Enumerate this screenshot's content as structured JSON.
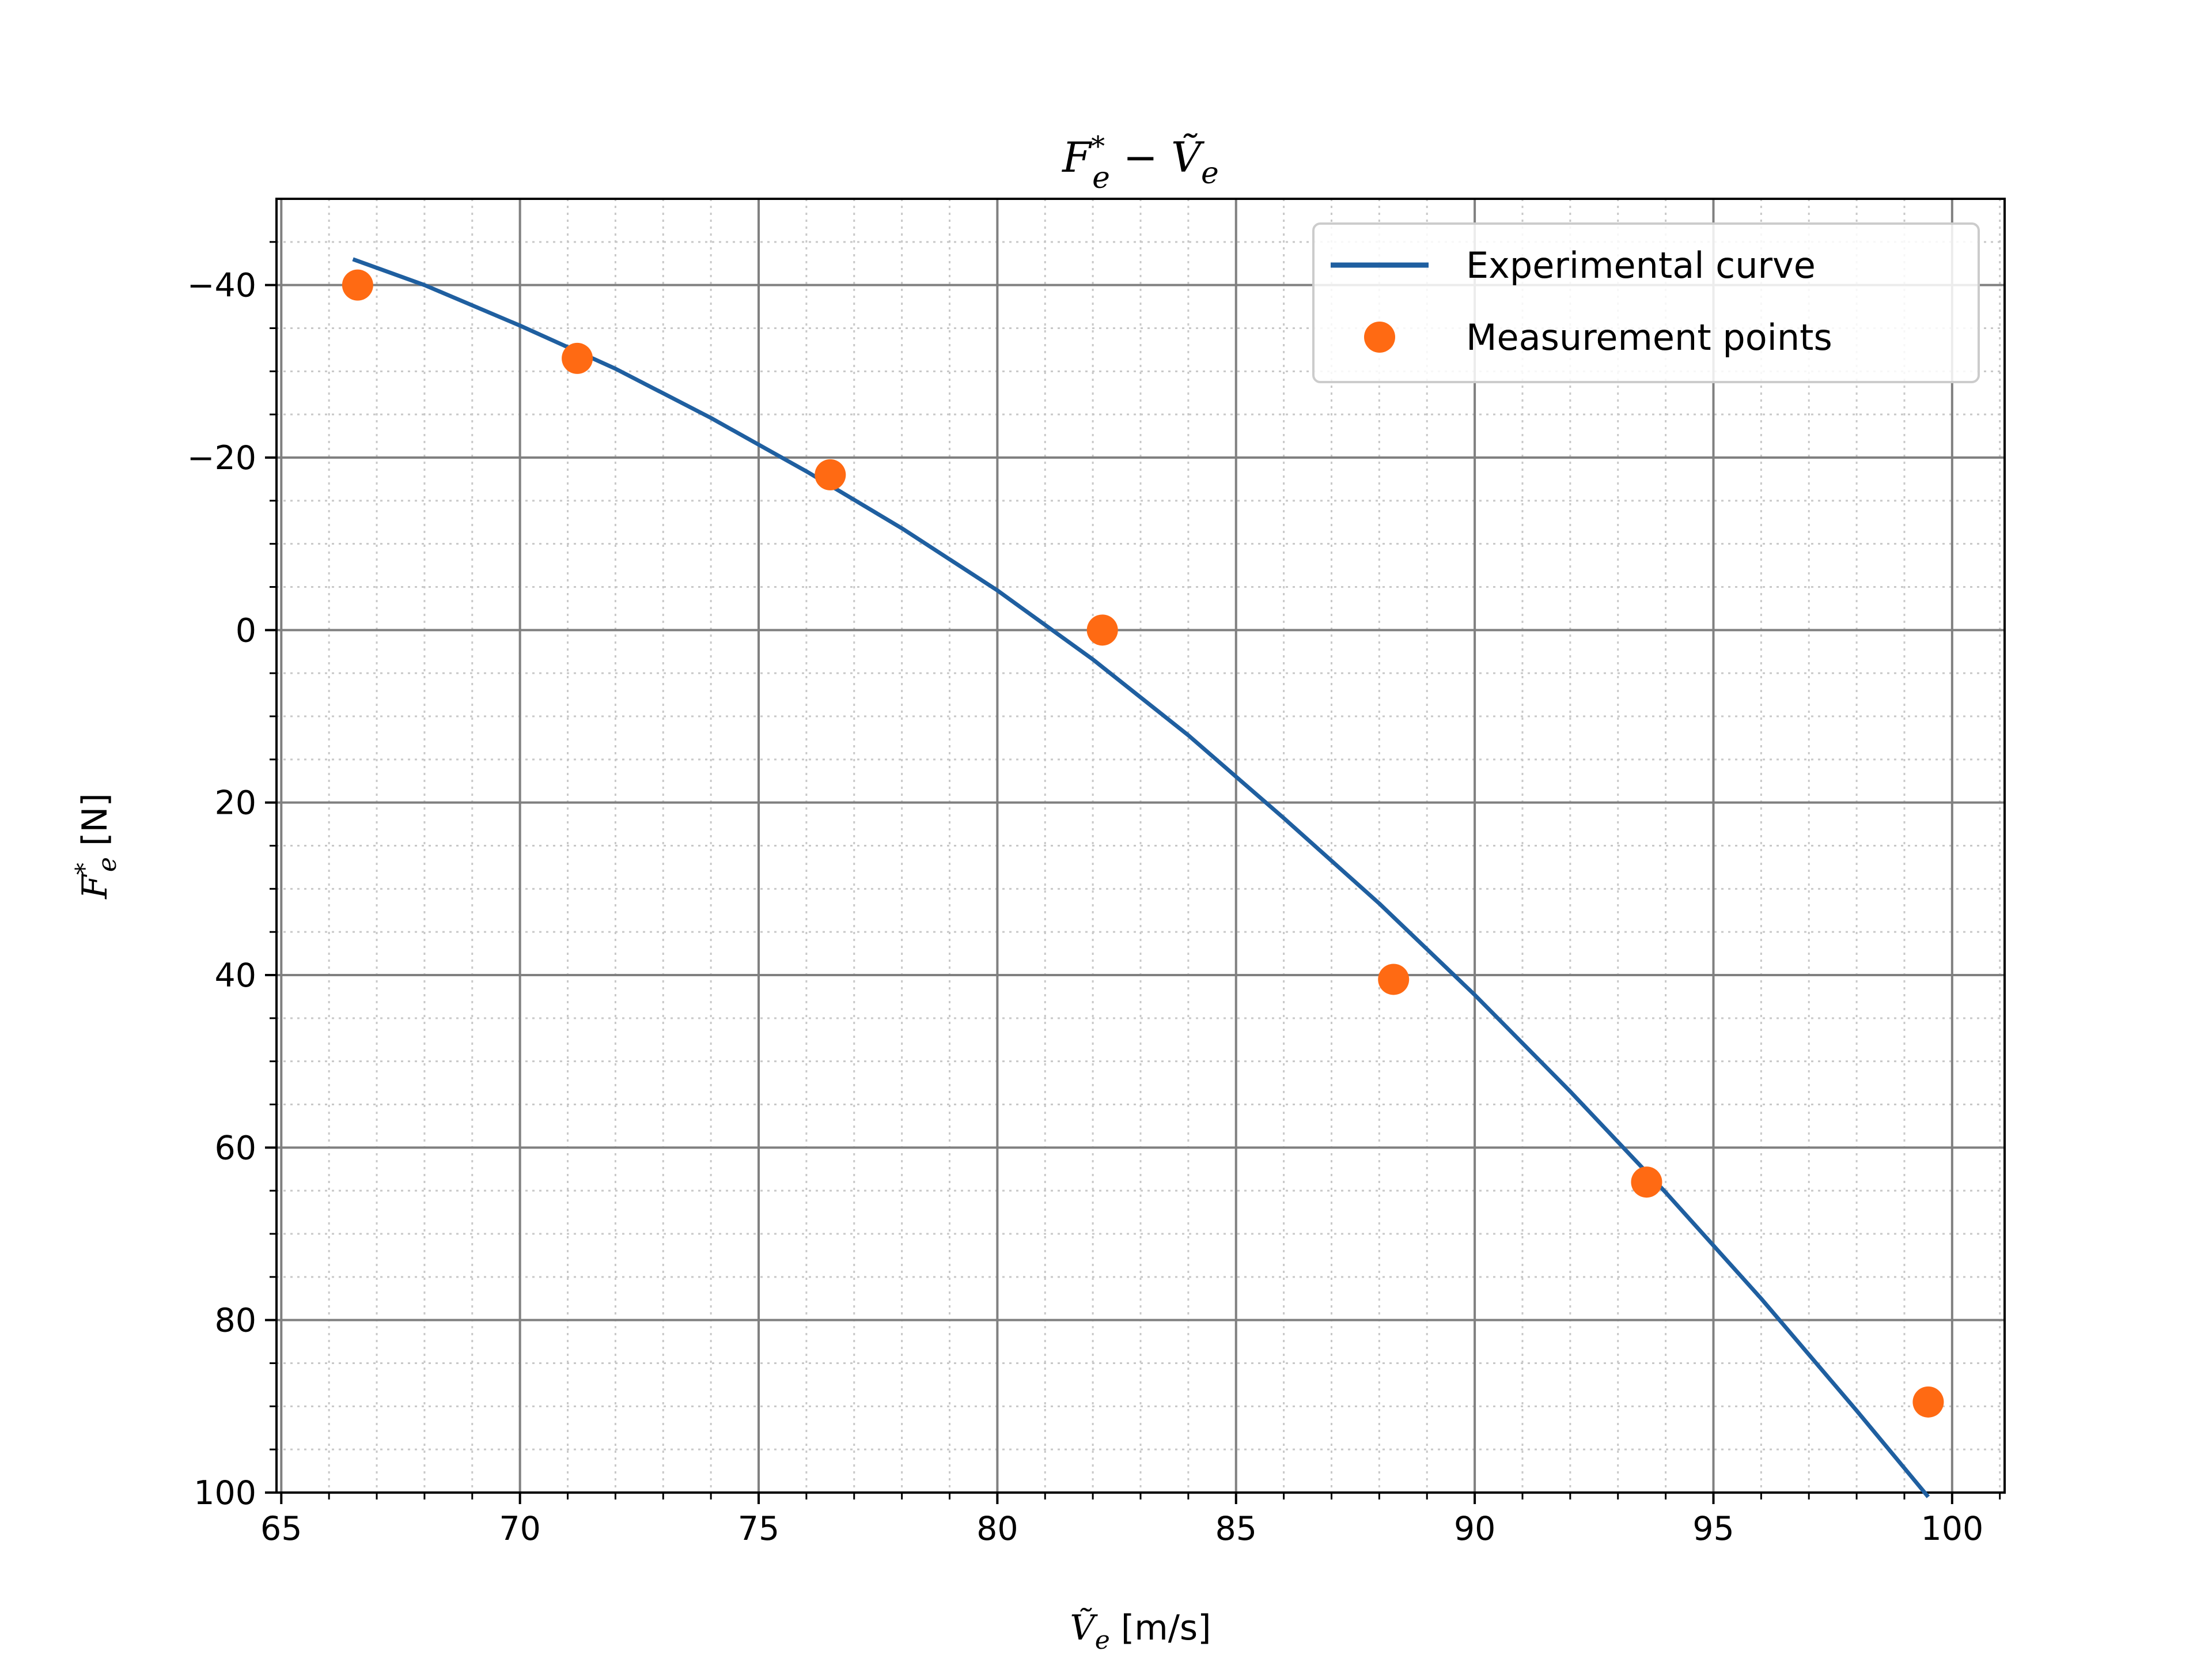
{
  "chart_data": {
    "type": "line",
    "title": "F_e^* − Ṽ_e",
    "xlabel": "Ṽ_e [m/s]",
    "ylabel": "F_e^* [N]",
    "xlim": [
      64.9,
      101.1
    ],
    "ylim": [
      100,
      -50
    ],
    "y_inverted": true,
    "grid": "major solid + minor dotted",
    "legend_position": "top-right",
    "xticks": [
      65,
      70,
      75,
      80,
      85,
      90,
      95,
      100
    ],
    "yticks": [
      -40,
      -20,
      0,
      20,
      40,
      60,
      80,
      100
    ],
    "xticks_minor": [
      66,
      67,
      68,
      69,
      71,
      72,
      73,
      74,
      76,
      77,
      78,
      79,
      81,
      82,
      83,
      84,
      86,
      87,
      88,
      89,
      91,
      92,
      93,
      94,
      96,
      97,
      98,
      99,
      101
    ],
    "yticks_minor": [
      -45,
      -35,
      -30,
      -25,
      -15,
      -10,
      -5,
      5,
      10,
      15,
      25,
      30,
      35,
      45,
      50,
      55,
      65,
      70,
      75,
      85,
      90,
      95
    ],
    "series": [
      {
        "name": "Experimental curve",
        "kind": "line",
        "color": "#1f5fa0",
        "x": [
          66.5,
          68.0,
          70.0,
          72.0,
          74.0,
          76.0,
          78.0,
          80.0,
          82.0,
          84.0,
          86.0,
          88.0,
          90.0,
          92.0,
          94.0,
          96.0,
          98.0,
          99.5
        ],
        "y": [
          -43.0,
          -40.0,
          -35.3,
          -30.3,
          -24.6,
          -18.4,
          -11.8,
          -4.6,
          3.4,
          12.2,
          21.8,
          31.7,
          42.3,
          53.5,
          65.2,
          77.5,
          90.5,
          100.5
        ]
      },
      {
        "name": "Measurement points",
        "kind": "scatter",
        "color": "#ff6a13",
        "x": [
          66.6,
          71.2,
          76.5,
          82.2,
          88.3,
          93.6,
          99.5
        ],
        "y": [
          -40.0,
          -31.5,
          -18.0,
          0.0,
          40.5,
          64.0,
          89.5
        ]
      }
    ]
  }
}
